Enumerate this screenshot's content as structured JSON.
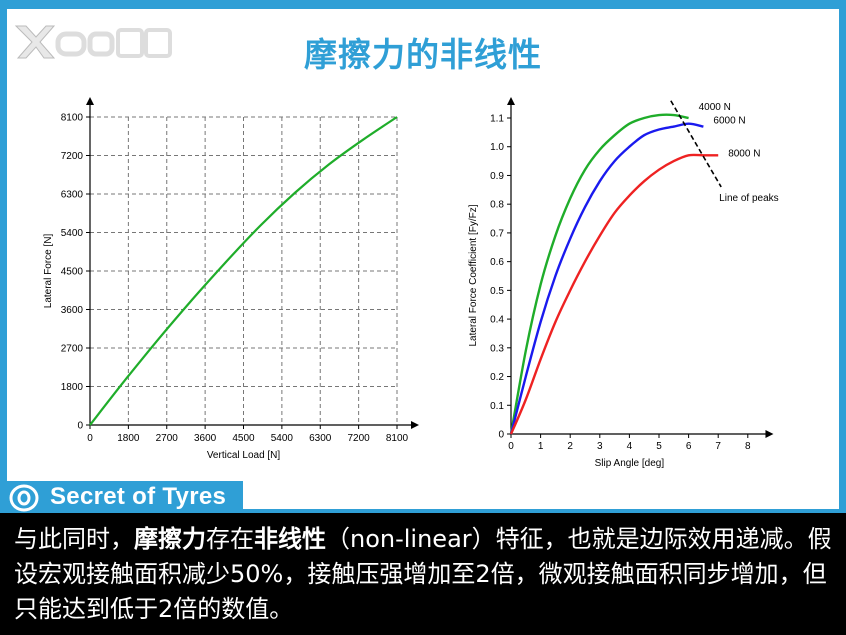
{
  "header": {
    "title": "摩擦力的非线性"
  },
  "brand": {
    "name": "Secret of Tyres"
  },
  "caption": {
    "parts": [
      {
        "text": "与此同时，",
        "bold": false
      },
      {
        "text": "摩擦力",
        "bold": true
      },
      {
        "text": "存在",
        "bold": false
      },
      {
        "text": "非线性",
        "bold": true
      },
      {
        "text": "（non-linear）特征，也就是边际效用递减。假设宏观接触面积减少50%，接触压强增加至2倍，微观接触面积同步增加，但只能达到低于2倍的数值。",
        "bold": false
      }
    ]
  },
  "colors": {
    "accent": "#2f9fd6",
    "green": "#1fad2a",
    "blue": "#1a1aee",
    "red": "#ee2222"
  },
  "chart_data": [
    {
      "type": "line",
      "title": "",
      "xlabel": "Vertical Load [N]",
      "ylabel": "Lateral Force [N]",
      "xlim": [
        0,
        8100
      ],
      "ylim": [
        0,
        8100
      ],
      "xticks": [
        "0",
        "1800",
        "2700",
        "3600",
        "4500",
        "5400",
        "6300",
        "7200",
        "8100"
      ],
      "yticks": [
        "0",
        "1800",
        "2700",
        "3600",
        "4500",
        "5400",
        "6300",
        "7200",
        "8100"
      ],
      "grid": true,
      "series": [
        {
          "color": "#1fad2a",
          "x": [
            0,
            900,
            1800,
            2700,
            3600,
            4500,
            5400,
            6300,
            7200,
            8100
          ],
          "y": [
            0,
            1150,
            2250,
            3300,
            4300,
            5250,
            6100,
            6850,
            7500,
            8100
          ]
        }
      ]
    },
    {
      "type": "line",
      "title": "",
      "xlabel": "Slip Angle [deg]",
      "ylabel": "Lateral Force Coefficient [Fy/Fz]",
      "xlim": [
        0,
        8
      ],
      "ylim": [
        0,
        1.1
      ],
      "xticks": [
        "0",
        "1",
        "2",
        "3",
        "4",
        "5",
        "6",
        "7",
        "8"
      ],
      "yticks": [
        "0",
        "0.1",
        "0.2",
        "0.3",
        "0.4",
        "0.5",
        "0.6",
        "0.7",
        "0.8",
        "0.9",
        "1.0",
        "1.1"
      ],
      "grid": false,
      "series": [
        {
          "name": "4000 N",
          "color": "#1fad2a",
          "x": [
            0,
            0.5,
            1,
            1.5,
            2,
            2.5,
            3,
            3.5,
            4,
            4.5,
            5,
            5.5,
            6
          ],
          "y": [
            0,
            0.29,
            0.52,
            0.69,
            0.82,
            0.92,
            0.99,
            1.04,
            1.08,
            1.1,
            1.11,
            1.11,
            1.1
          ]
        },
        {
          "name": "6000 N",
          "color": "#1a1aee",
          "x": [
            0,
            0.5,
            1,
            1.5,
            2,
            2.5,
            3,
            3.5,
            4,
            4.5,
            5,
            5.5,
            6,
            6.5
          ],
          "y": [
            0,
            0.2,
            0.39,
            0.55,
            0.68,
            0.79,
            0.88,
            0.95,
            1.0,
            1.04,
            1.06,
            1.07,
            1.08,
            1.07
          ]
        },
        {
          "name": "8000 N",
          "color": "#ee2222",
          "x": [
            0,
            0.5,
            1,
            1.5,
            2,
            2.5,
            3,
            3.5,
            4,
            4.5,
            5,
            5.5,
            6,
            6.5,
            7
          ],
          "y": [
            0,
            0.12,
            0.26,
            0.39,
            0.5,
            0.6,
            0.69,
            0.77,
            0.83,
            0.88,
            0.92,
            0.95,
            0.97,
            0.97,
            0.97
          ]
        }
      ],
      "annotations": [
        {
          "text": "Line of peaks",
          "x1": 5.4,
          "y1": 1.16,
          "x2": 7.1,
          "y2": 0.86
        }
      ]
    }
  ]
}
